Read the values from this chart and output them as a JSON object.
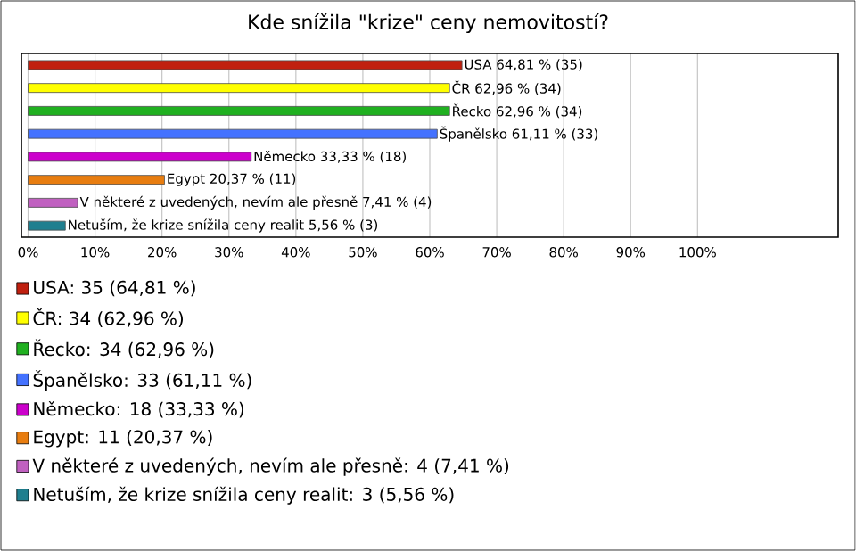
{
  "chart_data": {
    "type": "bar",
    "orientation": "horizontal",
    "title": "Kde snížila \"krize\" ceny nemovitostí?",
    "categories": [
      null,
      null,
      null,
      null,
      null,
      null,
      null,
      null
    ],
    "series": [
      {
        "name": "USA: 35 (64,81 %)",
        "color": "#c0200f",
        "values": [
          64.81,
          null,
          null,
          null,
          null,
          null,
          null,
          null
        ],
        "value_labels": [
          "USA 64,81 % (35)",
          null,
          null,
          null,
          null,
          null,
          null,
          null
        ]
      },
      {
        "name": "ČR: 34 (62,96 %)",
        "color": "#ffff00",
        "values": [
          null,
          62.96,
          null,
          null,
          null,
          null,
          null,
          null
        ],
        "value_labels": [
          null,
          "ČR 62,96 % (34)",
          null,
          null,
          null,
          null,
          null,
          null
        ]
      },
      {
        "name": "Řecko: 34 (62,96 %)",
        "color": "#20b020",
        "values": [
          null,
          null,
          62.96,
          null,
          null,
          null,
          null,
          null
        ],
        "value_labels": [
          null,
          null,
          "Řecko 62,96 % (34)",
          null,
          null,
          null,
          null,
          null
        ]
      },
      {
        "name": "Španělsko: 33 (61,11 %)",
        "color": "#4472ff",
        "values": [
          null,
          null,
          null,
          61.11,
          null,
          null,
          null,
          null
        ],
        "value_labels": [
          null,
          null,
          null,
          "Španělsko 61,11 % (33)",
          null,
          null,
          null,
          null
        ]
      },
      {
        "name": "Německo: 18 (33,33 %)",
        "color": "#cc00cc",
        "values": [
          null,
          null,
          null,
          null,
          33.33,
          null,
          null,
          null
        ],
        "value_labels": [
          null,
          null,
          null,
          null,
          "Německo 33,33 % (18)",
          null,
          null,
          null
        ]
      },
      {
        "name": "Egypt: 11 (20,37 %)",
        "color": "#e87d10",
        "values": [
          null,
          null,
          null,
          null,
          null,
          20.37,
          null,
          null
        ],
        "value_labels": [
          null,
          null,
          null,
          null,
          null,
          "Egypt 20,37 % (11)",
          null,
          null
        ]
      },
      {
        "name": "V některé z uvedených, nevím ale přesně: 4 (7,41 %)",
        "color": "#c060c0",
        "values": [
          null,
          null,
          null,
          null,
          null,
          null,
          7.41,
          null
        ],
        "value_labels": [
          null,
          null,
          null,
          null,
          null,
          null,
          "V některé z uvedených, nevím ale přesně 7,41 % (4)",
          null
        ]
      },
      {
        "name": "Netuším, že krize snížila ceny realit: 3 (5,56 %)",
        "color": "#1f7f8f",
        "values": [
          null,
          null,
          null,
          null,
          null,
          null,
          null,
          5.56
        ],
        "value_labels": [
          null,
          null,
          null,
          null,
          null,
          null,
          null,
          "Netuším, že krize snížila ceny realit 5,56 % (3)"
        ]
      }
    ],
    "xlim": [
      -1,
      121
    ],
    "xticks": [
      {
        "value": 0,
        "label": "0%"
      },
      {
        "value": 10,
        "label": "10%"
      },
      {
        "value": 20,
        "label": "20%"
      },
      {
        "value": 30,
        "label": "30%"
      },
      {
        "value": 40,
        "label": "40%"
      },
      {
        "value": 50,
        "label": "50%"
      },
      {
        "value": 60,
        "label": "60%"
      },
      {
        "value": 70,
        "label": "70%"
      },
      {
        "value": 80,
        "label": "80%"
      },
      {
        "value": 90,
        "label": "90%"
      },
      {
        "value": 100,
        "label": "100%"
      }
    ],
    "grid": "x",
    "legend": "bottom"
  }
}
